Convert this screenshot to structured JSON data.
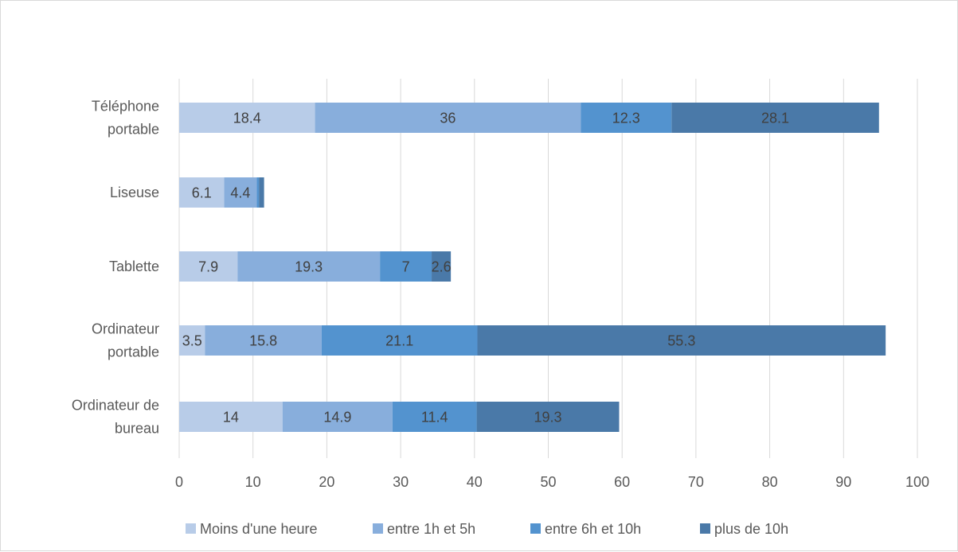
{
  "chart_data": {
    "type": "bar",
    "orientation": "horizontal",
    "stacked": true,
    "title": "",
    "xlabel": "",
    "ylabel": "",
    "xlim": [
      0,
      100
    ],
    "x_ticks": [
      0,
      10,
      20,
      30,
      40,
      50,
      60,
      70,
      80,
      90,
      100
    ],
    "grid": true,
    "legend_position": "bottom",
    "categories": [
      [
        "Téléphone",
        "portable"
      ],
      [
        "Liseuse"
      ],
      [
        "Tablette"
      ],
      [
        "Ordinateur",
        "portable"
      ],
      [
        "Ordinateur de",
        "bureau"
      ]
    ],
    "series": [
      {
        "name": "Moins d'une heure",
        "color": "#b8cce8",
        "values": [
          18.4,
          6.1,
          7.9,
          3.5,
          14
        ],
        "labels": [
          "18.4",
          "6.1",
          "7.9",
          "3.5",
          "14"
        ]
      },
      {
        "name": "entre 1h et 5h",
        "color": "#88aedc",
        "values": [
          36,
          4.4,
          19.3,
          15.8,
          14.9
        ],
        "labels": [
          "36",
          "4.4",
          "19.3",
          "15.8",
          "14.9"
        ]
      },
      {
        "name": "entre 6h et 10h",
        "color": "#5393cf",
        "values": [
          12.3,
          0.3,
          7,
          21.1,
          11.4
        ],
        "labels": [
          "12.3",
          "",
          "7",
          "21.1",
          "11.4"
        ]
      },
      {
        "name": "plus de 10h",
        "color": "#4a79a8",
        "values": [
          28.1,
          0.7,
          2.6,
          55.3,
          19.3
        ],
        "labels": [
          "28.1",
          "",
          "2.6",
          "55.3",
          "19.3"
        ]
      }
    ]
  }
}
